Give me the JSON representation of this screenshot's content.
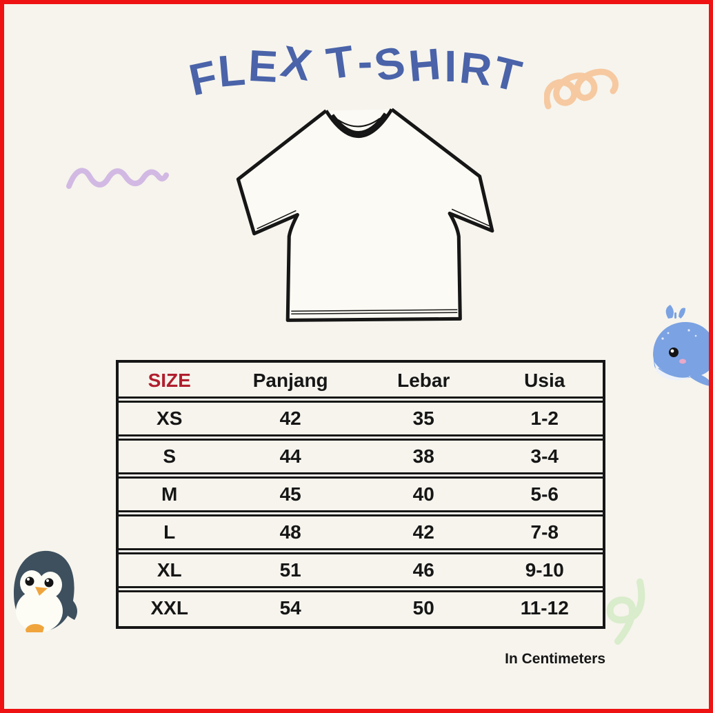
{
  "title": {
    "text": "FLEX T-SHIRT"
  },
  "size_chart": {
    "columns": {
      "size": "SIZE",
      "panjang": "Panjang",
      "lebar": "Lebar",
      "usia": "Usia"
    },
    "rows": [
      {
        "size": "XS",
        "panjang": "42",
        "lebar": "35",
        "usia": "1-2"
      },
      {
        "size": "S",
        "panjang": "44",
        "lebar": "38",
        "usia": "3-4"
      },
      {
        "size": "M",
        "panjang": "45",
        "lebar": "40",
        "usia": "5-6"
      },
      {
        "size": "L",
        "panjang": "48",
        "lebar": "42",
        "usia": "7-8"
      },
      {
        "size": "XL",
        "panjang": "51",
        "lebar": "46",
        "usia": "9-10"
      },
      {
        "size": "XXL",
        "panjang": "54",
        "lebar": "50",
        "usia": "11-12"
      }
    ],
    "unit_note": "In Centimeters"
  },
  "colors": {
    "frame_border": "#ee1212",
    "background": "#f6f4ed",
    "title_blue": "#4a63a9",
    "size_red": "#b01f2e",
    "ink": "#161616",
    "tshirt_fill": "#fcfaf4",
    "purple_squiggle": "#d2b9e3",
    "orange_spiral": "#f6c9a1",
    "whale_body": "#7ba2e2",
    "whale_belly": "#edf2fa",
    "whale_cheek": "#e9a9c9",
    "penguin_body": "#3e505e",
    "penguin_white": "#fdfdf6",
    "penguin_orange": "#f0a53c",
    "green_squiggle": "#d9eccb"
  }
}
